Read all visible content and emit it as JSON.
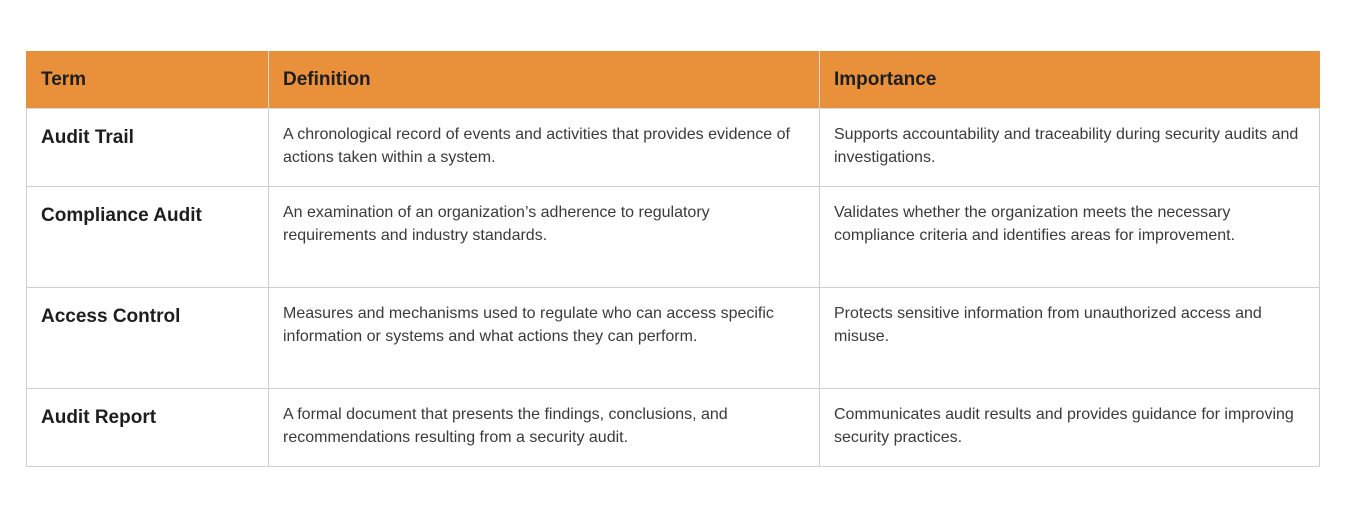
{
  "headers": {
    "term": "Term",
    "definition": "Definition",
    "importance": "Importance"
  },
  "rows": [
    {
      "term": "Audit Trail",
      "definition": "A chronological record of events and activities that provides evidence of actions taken within a system.",
      "importance": "Supports accountability and traceability during security audits and investigations."
    },
    {
      "term": "Compliance Audit",
      "definition": "An examination of an organization’s adherence to regulatory requirements and industry standards.",
      "importance": "Validates whether the organization meets the necessary compliance criteria and identifies areas for improvement."
    },
    {
      "term": "Access Control",
      "definition": "Measures and mechanisms used to regulate who can access specific information or systems and what actions they can perform.",
      "importance": "Protects sensitive information from unauthorized access and misuse."
    },
    {
      "term": "Audit Report",
      "definition": "A formal document that presents the findings, conclusions, and recommendations resulting from a security audit.",
      "importance": "Communicates audit results and provides guidance for improving security practices."
    }
  ],
  "colors": {
    "header_bg": "#e8913a",
    "border": "#cfcfcf",
    "text": "#3a3a3a"
  }
}
